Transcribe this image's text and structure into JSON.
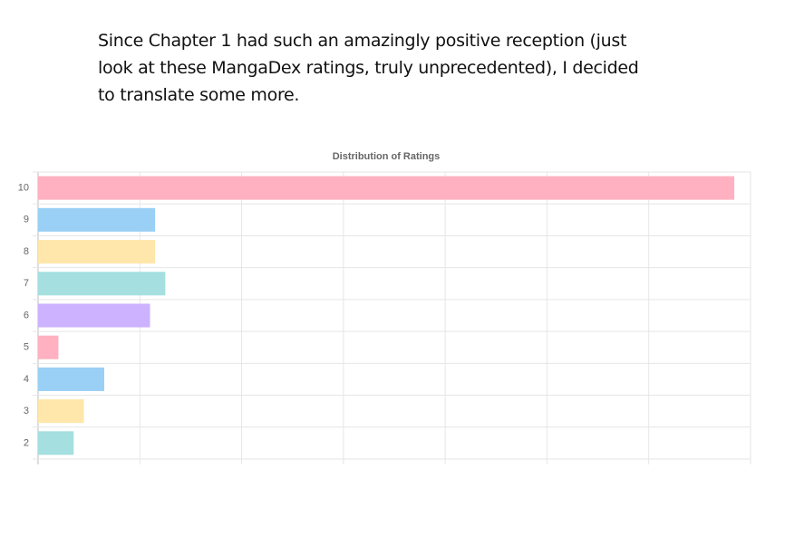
{
  "caption": [
    "Since Chapter 1 had such an amazingly positive reception (just",
    "look at these MangaDex ratings, truly unprecedented), I decided",
    "to translate some more."
  ],
  "chart_data": {
    "type": "hbar",
    "title": "Distribution of Ratings",
    "categories": [
      "10",
      "9",
      "8",
      "7",
      "6",
      "5",
      "4",
      "3",
      "2"
    ],
    "values": [
      6.84,
      1.15,
      1.15,
      1.25,
      1.1,
      0.2,
      0.65,
      0.45,
      0.35
    ],
    "colors": [
      "#ffb1c1",
      "#9ad0f5",
      "#ffe6aa",
      "#a5dfdf",
      "#ccb2ff",
      "#ffb1c1",
      "#9ad0f5",
      "#ffe6aa",
      "#a5dfdf"
    ],
    "xlim": [
      0,
      7
    ],
    "xticks": [
      0,
      1,
      2,
      3,
      4,
      5,
      6,
      7
    ],
    "grid": true
  }
}
